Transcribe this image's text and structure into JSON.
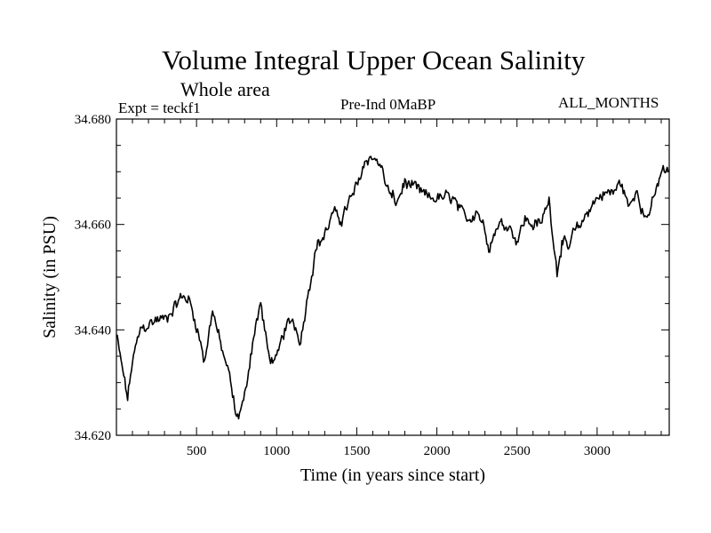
{
  "chart_data": {
    "type": "line",
    "title": "Volume Integral Upper Ocean Salinity",
    "subtitle": "Whole area",
    "left_label": "Expt = teckf1",
    "center_label": "Pre-Ind 0MaBP",
    "right_label": "ALL_MONTHS",
    "xlabel": "Time (in years since start)",
    "ylabel": "Salinity (in PSU)",
    "xlim": [
      0,
      3450
    ],
    "ylim": [
      34.62,
      34.68
    ],
    "x_ticks": [
      500,
      1000,
      1500,
      2000,
      2500,
      3000
    ],
    "x_tick_labels": [
      "500",
      "1000",
      "1500",
      "2000",
      "2500",
      "3000"
    ],
    "y_ticks": [
      34.62,
      34.64,
      34.66,
      34.68
    ],
    "y_tick_labels": [
      "34.620",
      "34.640",
      "34.660",
      "34.680"
    ],
    "series": [
      {
        "name": "salinity",
        "color": "#000000",
        "x": [
          0,
          40,
          70,
          100,
          150,
          200,
          250,
          300,
          350,
          400,
          450,
          500,
          550,
          600,
          650,
          700,
          750,
          800,
          850,
          900,
          950,
          1000,
          1050,
          1100,
          1150,
          1200,
          1250,
          1300,
          1350,
          1400,
          1450,
          1500,
          1550,
          1600,
          1650,
          1700,
          1750,
          1800,
          1850,
          1900,
          1950,
          2000,
          2050,
          2100,
          2150,
          2200,
          2250,
          2300,
          2330,
          2380,
          2450,
          2500,
          2550,
          2600,
          2650,
          2700,
          2750,
          2780,
          2820,
          2850,
          2900,
          2950,
          3000,
          3050,
          3100,
          3150,
          3200,
          3250,
          3300,
          3350,
          3400,
          3450
        ],
        "y": [
          34.639,
          34.632,
          34.627,
          34.634,
          34.64,
          34.641,
          34.642,
          34.642,
          34.644,
          34.646,
          34.646,
          34.641,
          34.634,
          34.644,
          34.637,
          34.632,
          34.623,
          34.627,
          34.638,
          34.645,
          34.635,
          34.634,
          34.64,
          34.642,
          34.638,
          34.648,
          34.656,
          34.658,
          34.662,
          34.661,
          34.664,
          34.667,
          34.672,
          34.673,
          34.671,
          34.666,
          34.664,
          34.668,
          34.667,
          34.666,
          34.665,
          34.665,
          34.665,
          34.665,
          34.662,
          34.661,
          34.663,
          34.659,
          34.656,
          34.66,
          34.66,
          34.657,
          34.661,
          34.66,
          34.66,
          34.665,
          34.651,
          34.657,
          34.655,
          34.658,
          34.66,
          34.663,
          34.665,
          34.666,
          34.666,
          34.668,
          34.663,
          34.667,
          34.661,
          34.664,
          34.67,
          34.67
        ]
      }
    ]
  }
}
